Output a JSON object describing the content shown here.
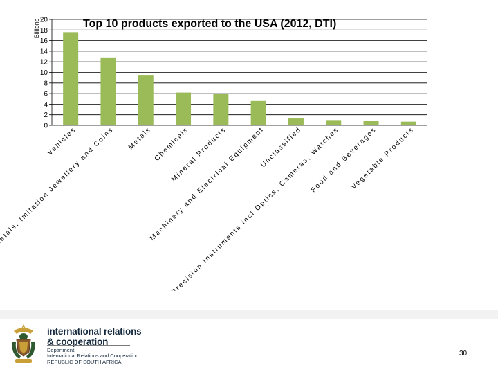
{
  "chart_data": {
    "type": "bar",
    "title": "Top 10 products exported to the USA (2012, DTI)",
    "ylabel": "Billions",
    "xlabel": "",
    "ylim": [
      0,
      20
    ],
    "yticks": [
      0,
      2,
      4,
      6,
      8,
      10,
      12,
      14,
      16,
      18,
      20
    ],
    "grid": true,
    "color": "#9bbb59",
    "categories": [
      "Vehicles",
      "Precious Metals, Imitation Jewellery and Coins",
      "Metals",
      "Chemicals",
      "Mineral Products",
      "Machinery and Electrical Equipment",
      "Unclassified",
      "Precision Instruments incl Optics, Cameras, Watches",
      "Food and Beverages",
      "Vegetable Products"
    ],
    "values": [
      17.6,
      12.7,
      9.4,
      6.2,
      6.0,
      4.6,
      1.3,
      1.0,
      0.8,
      0.7
    ]
  },
  "footer": {
    "brand_line1": "international relations",
    "brand_line2": "& cooperation",
    "dept_line1": "Department:",
    "dept_line2": "International Relations and Cooperation",
    "dept_line3": "REPUBLIC OF SOUTH AFRICA",
    "page_number": "30"
  }
}
